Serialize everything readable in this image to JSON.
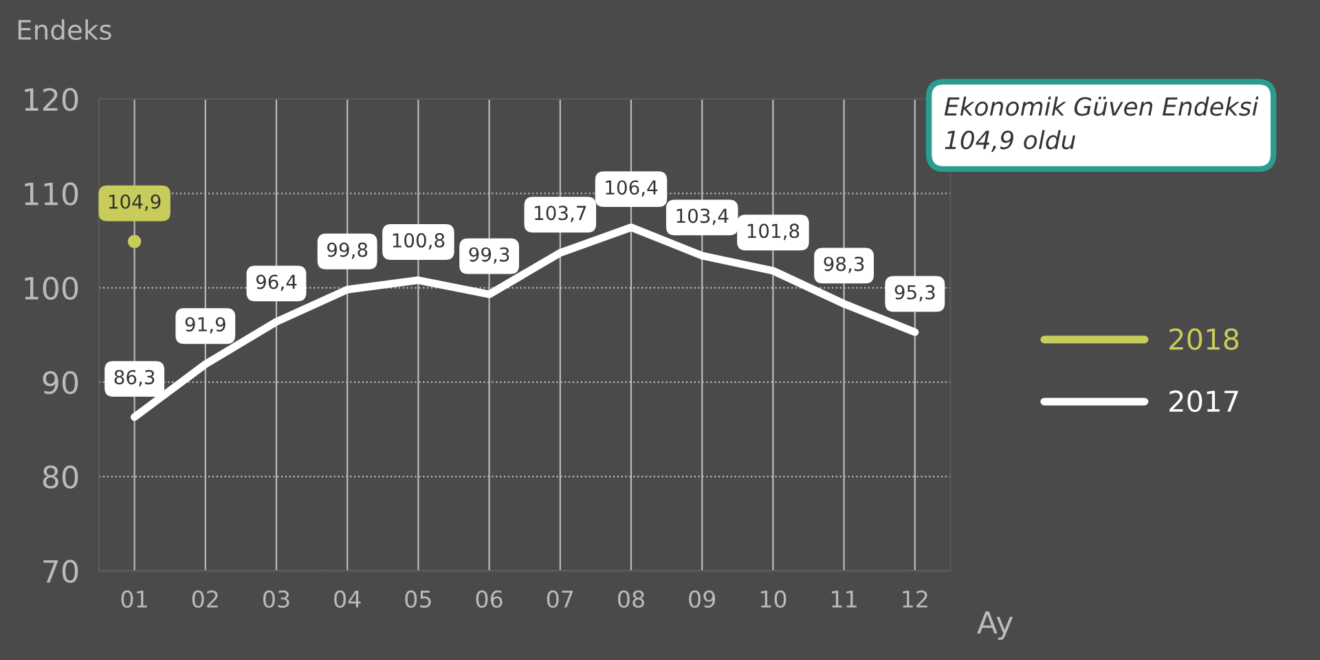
{
  "chart_data": {
    "type": "line",
    "ylabel": "Endeks",
    "xlabel": "Ay",
    "categories": [
      "01",
      "02",
      "03",
      "04",
      "05",
      "06",
      "07",
      "08",
      "09",
      "10",
      "11",
      "12"
    ],
    "ylim": [
      70,
      120
    ],
    "yticks": [
      70,
      80,
      90,
      100,
      110,
      120
    ],
    "grid": true,
    "legend": "right",
    "line_style": "solid",
    "annotations": [
      "Ekonomik Güven Endeksi\n104,9 oldu"
    ],
    "series": [
      {
        "name": "2018",
        "color": "#c8cc5a",
        "marker": "circle",
        "values": [
          104.9,
          null,
          null,
          null,
          null,
          null,
          null,
          null,
          null,
          null,
          null,
          null
        ],
        "value_labels": [
          "104,9",
          null,
          null,
          null,
          null,
          null,
          null,
          null,
          null,
          null,
          null,
          null
        ]
      },
      {
        "name": "2017",
        "color": "#ffffff",
        "marker": "none",
        "values": [
          86.3,
          91.9,
          96.4,
          99.8,
          100.8,
          99.3,
          103.7,
          106.4,
          103.4,
          101.8,
          98.3,
          95.3
        ],
        "value_labels": [
          "86,3",
          "91,9",
          "96,4",
          "99,8",
          "100,8",
          "99,3",
          "103,7",
          "106,4",
          "103,4",
          "101,8",
          "98,3",
          "95,3"
        ]
      }
    ]
  }
}
